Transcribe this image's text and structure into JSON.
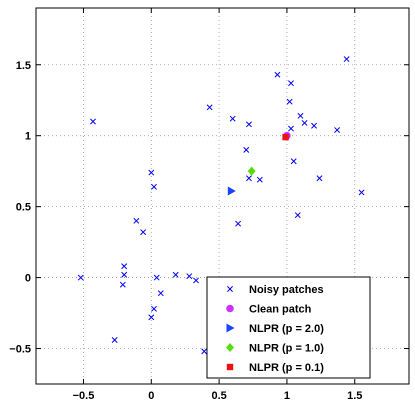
{
  "chart_data": {
    "type": "scatter",
    "xlim": [
      -0.85,
      1.9
    ],
    "ylim": [
      -0.75,
      1.9
    ],
    "x_ticks": [
      -0.5,
      0,
      0.5,
      1,
      1.5
    ],
    "y_ticks": [
      -0.5,
      0,
      0.5,
      1,
      1.5
    ],
    "x_tick_labels": [
      "−0.5",
      "0",
      "0.5",
      "1",
      "1.5"
    ],
    "y_tick_labels": [
      "−0.5",
      "0",
      "0.5",
      "1",
      "1.5"
    ],
    "grid": true,
    "legend_position": "bottom-right",
    "series": [
      {
        "name": "Noisy patches",
        "marker": "x",
        "color": "#0000ff",
        "points": [
          [
            -0.43,
            1.1
          ],
          [
            0.43,
            1.2
          ],
          [
            0.6,
            1.12
          ],
          [
            0.72,
            1.08
          ],
          [
            0.7,
            0.9
          ],
          [
            0.93,
            1.43
          ],
          [
            1.03,
            1.37
          ],
          [
            1.44,
            1.54
          ],
          [
            1.02,
            1.24
          ],
          [
            1.1,
            1.14
          ],
          [
            1.13,
            1.09
          ],
          [
            1.2,
            1.07
          ],
          [
            1.03,
            1.05
          ],
          [
            1.37,
            1.04
          ],
          [
            1.05,
            0.82
          ],
          [
            1.24,
            0.7
          ],
          [
            1.55,
            0.6
          ],
          [
            1.08,
            0.44
          ],
          [
            0.72,
            0.7
          ],
          [
            0.8,
            0.69
          ],
          [
            0.64,
            0.38
          ],
          [
            0.0,
            0.74
          ],
          [
            0.02,
            0.64
          ],
          [
            -0.11,
            0.4
          ],
          [
            -0.06,
            0.32
          ],
          [
            -0.2,
            0.08
          ],
          [
            -0.2,
            0.02
          ],
          [
            -0.21,
            -0.05
          ],
          [
            -0.52,
            0.0
          ],
          [
            0.04,
            0.0
          ],
          [
            0.18,
            0.02
          ],
          [
            0.28,
            0.01
          ],
          [
            0.33,
            -0.02
          ],
          [
            0.07,
            -0.11
          ],
          [
            0.02,
            -0.22
          ],
          [
            0.0,
            -0.28
          ],
          [
            -0.27,
            -0.44
          ],
          [
            0.39,
            -0.52
          ]
        ]
      },
      {
        "name": "Clean patch",
        "marker": "circle",
        "color": "#cc33ff",
        "points": [
          [
            1.0,
            1.0
          ]
        ]
      },
      {
        "name": "NLPR (p = 2.0)",
        "marker": "triangle-right",
        "color": "#1a44ff",
        "points": [
          [
            0.59,
            0.61
          ]
        ]
      },
      {
        "name": "NLPR (p = 1.0)",
        "marker": "diamond",
        "color": "#55dd11",
        "points": [
          [
            0.74,
            0.75
          ]
        ]
      },
      {
        "name": "NLPR (p = 0.1)",
        "marker": "square",
        "color": "#ee1111",
        "points": [
          [
            0.99,
            0.99
          ]
        ]
      }
    ]
  }
}
